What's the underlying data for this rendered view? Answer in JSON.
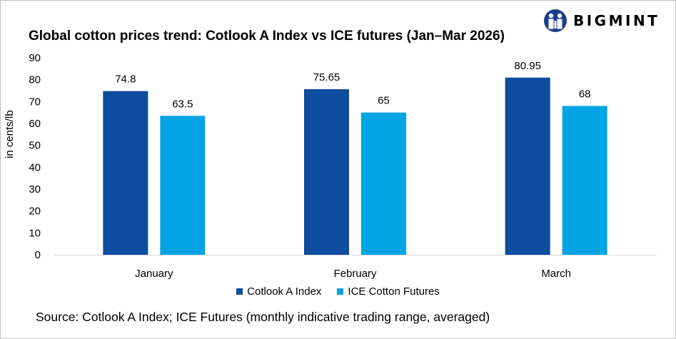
{
  "logo": {
    "text": "BIGMINT",
    "color": "#1a3e8c"
  },
  "chart_data": {
    "type": "bar",
    "title": "Global cotton prices trend: Cotlook A Index vs ICE futures (Jan–Mar 2026)",
    "ylabel": "in cents/lb",
    "xlabel": "",
    "categories": [
      "January",
      "February",
      "March"
    ],
    "ylim": [
      0,
      90
    ],
    "yticks": [
      0,
      10,
      20,
      30,
      40,
      50,
      60,
      70,
      80,
      90
    ],
    "grid": false,
    "legend_position": "bottom",
    "series": [
      {
        "name": "Cotlook A Index",
        "values": [
          74.8,
          75.65,
          80.95
        ],
        "labels": [
          "74.8",
          "75.65",
          "80.95"
        ],
        "color": "#0d4c9e"
      },
      {
        "name": "ICE Cotton Futures",
        "values": [
          63.5,
          65,
          68
        ],
        "labels": [
          "63.5",
          "65",
          "68"
        ],
        "color": "#03a4e3"
      }
    ]
  },
  "source": "Source: Cotlook A Index; ICE Futures (monthly indicative trading range, averaged)"
}
